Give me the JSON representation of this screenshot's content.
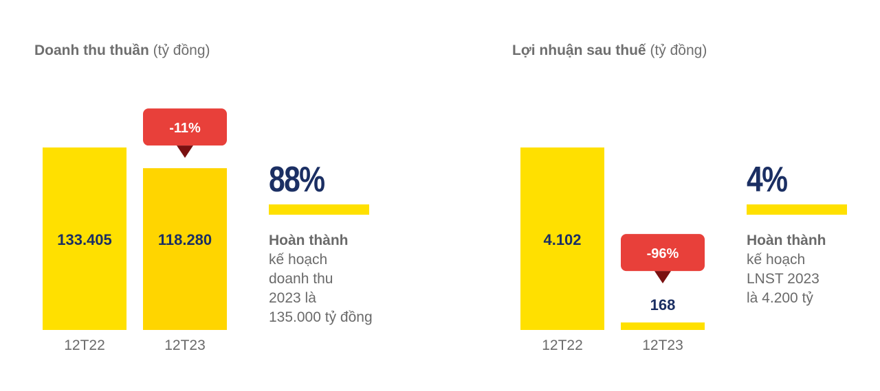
{
  "colors": {
    "bar_primary": "#ffe000",
    "bar_secondary": "#ffd500",
    "callout": "#e8403a",
    "callout_pointer": "#7a1010",
    "value_text": "#1b2f63",
    "muted_text": "#6a6a6a"
  },
  "left": {
    "title_bold": "Doanh thu thuần",
    "title_unit": " (tỷ đồng)",
    "change_callout": "-11%",
    "percent": "88%",
    "done_label": "Hoàn thành",
    "desc_lines": [
      "kế hoạch",
      "doanh thu",
      "2023 là",
      "135.000 tỷ đồng"
    ]
  },
  "right": {
    "title_bold": "Lợi nhuận sau thuế",
    "title_unit": " (tỷ đồng)",
    "change_callout": "-96%",
    "percent": "4%",
    "done_label": "Hoàn thành",
    "desc_lines": [
      "kế hoạch",
      "LNST 2023",
      "là 4.200 tỷ"
    ]
  },
  "chart_data": [
    {
      "type": "bar",
      "title": "Doanh thu thuần (tỷ đồng)",
      "categories": [
        "12T22",
        "12T23"
      ],
      "values": [
        133405,
        118280
      ],
      "value_labels": [
        "133.405",
        "118.280"
      ],
      "annotations": [
        "-11%",
        "88%"
      ],
      "ylim": [
        0,
        133405
      ]
    },
    {
      "type": "bar",
      "title": "Lợi nhuận sau thuế (tỷ đồng)",
      "categories": [
        "12T22",
        "12T23"
      ],
      "values": [
        4102,
        168
      ],
      "value_labels": [
        "4.102",
        "168"
      ],
      "annotations": [
        "-96%",
        "4%"
      ],
      "ylim": [
        0,
        4102
      ]
    }
  ]
}
